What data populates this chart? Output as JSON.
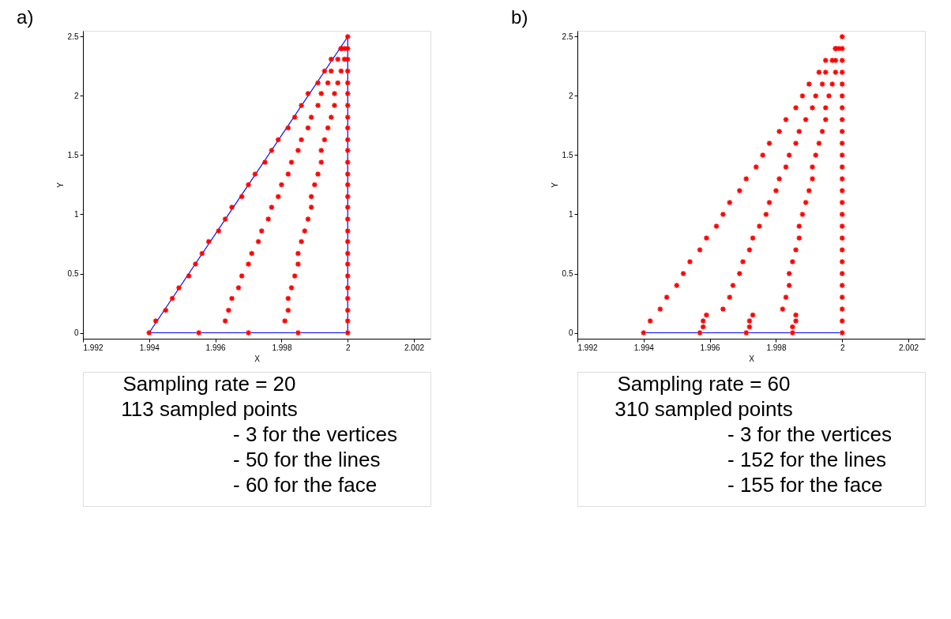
{
  "chart_data": [
    {
      "type": "scatter",
      "title": "a)",
      "xlabel": "X",
      "ylabel": "Y",
      "xlim": [
        1.992,
        2.0025
      ],
      "ylim": [
        -0.05,
        2.55
      ],
      "xticks": [
        1.992,
        1.994,
        1.996,
        1.998,
        2,
        2.002
      ],
      "yticks": [
        0,
        0.5,
        1,
        1.5,
        2,
        2.5
      ],
      "grid": false,
      "series": [
        {
          "type": "line",
          "marker": "none",
          "color": "#0000ff",
          "line_style": "solid",
          "x": [
            1.994,
            2,
            2
          ],
          "values": [
            0,
            0,
            2.5
          ]
        },
        {
          "type": "line",
          "marker": "none",
          "color": "#0000ff",
          "line_style": "solid",
          "x": [
            1.994,
            2
          ],
          "values": [
            0,
            2.5
          ]
        },
        {
          "marker": "cross",
          "color": "#ff0000",
          "x": [
            1.994,
            1.9942,
            1.9945,
            1.9947,
            1.9949,
            1.9952,
            1.9954,
            1.9956,
            1.9958,
            1.9961,
            1.9963,
            1.9965,
            1.9968,
            1.997,
            1.9972,
            1.9975,
            1.9977,
            1.9979,
            1.9982,
            1.9984,
            1.9986,
            1.9988,
            1.9991,
            1.9993,
            1.9995,
            1.9998,
            2.0,
            2,
            2,
            2,
            2,
            2,
            2,
            2,
            2,
            2,
            2,
            2,
            2,
            2,
            2,
            2,
            2,
            2,
            2,
            2,
            2,
            2,
            2,
            2,
            2,
            2,
            2,
            1.9955,
            1.997,
            1.9985,
            1.9963,
            1.9964,
            1.9965,
            1.9967,
            1.9968,
            1.997,
            1.9971,
            1.9973,
            1.9974,
            1.9976,
            1.9977,
            1.9979,
            1.998,
            1.9982,
            1.9983,
            1.9985,
            1.9986,
            1.9988,
            1.9989,
            1.9991,
            1.9992,
            1.9994,
            1.9995,
            1.9997,
            1.9998,
            1.9981,
            1.9982,
            1.9982,
            1.9983,
            1.9984,
            1.9985,
            1.9985,
            1.9986,
            1.9987,
            1.9988,
            1.9989,
            1.9989,
            1.999,
            1.9991,
            1.9992,
            1.9992,
            1.9993,
            1.9994,
            1.9995,
            1.9996,
            1.9996,
            1.9997,
            1.9998,
            1.9999,
            1.9999
          ],
          "values": [
            0,
            0.1,
            0.19,
            0.29,
            0.38,
            0.48,
            0.58,
            0.67,
            0.77,
            0.86,
            0.96,
            1.06,
            1.15,
            1.25,
            1.34,
            1.44,
            1.54,
            1.63,
            1.73,
            1.82,
            1.92,
            2.02,
            2.11,
            2.21,
            2.31,
            2.4,
            2.5,
            0,
            0.1,
            0.19,
            0.29,
            0.38,
            0.48,
            0.58,
            0.67,
            0.77,
            0.86,
            0.96,
            1.06,
            1.15,
            1.25,
            1.34,
            1.44,
            1.54,
            1.63,
            1.73,
            1.82,
            1.92,
            2.02,
            2.11,
            2.21,
            2.31,
            2.4,
            0,
            0,
            0,
            0.1,
            0.19,
            0.29,
            0.38,
            0.48,
            0.58,
            0.67,
            0.77,
            0.86,
            0.96,
            1.06,
            1.15,
            1.25,
            1.34,
            1.44,
            1.54,
            1.63,
            1.73,
            1.82,
            1.92,
            2.02,
            2.11,
            2.21,
            2.31,
            2.4,
            0.1,
            0.19,
            0.29,
            0.38,
            0.48,
            0.58,
            0.67,
            0.77,
            0.86,
            0.96,
            1.06,
            1.15,
            1.25,
            1.34,
            1.44,
            1.54,
            1.63,
            1.73,
            1.82,
            1.92,
            2.02,
            2.11,
            2.21,
            2.31,
            2.4
          ]
        }
      ],
      "annotations": [
        "Sampling rate = 20",
        "113 sampled points",
        "- 3 for the vertices",
        "- 50 for the lines",
        "- 60 for the face"
      ]
    },
    {
      "type": "scatter",
      "title": "b)",
      "xlabel": "X",
      "ylabel": "Y",
      "xlim": [
        1.992,
        2.0025
      ],
      "ylim": [
        -0.05,
        2.55
      ],
      "xticks": [
        1.992,
        1.994,
        1.996,
        1.998,
        2,
        2.002
      ],
      "yticks": [
        0,
        0.5,
        1,
        1.5,
        2,
        2.5
      ],
      "grid": false,
      "series": [
        {
          "type": "line",
          "marker": "none",
          "color": "#0000ff",
          "line_style": "solid",
          "x": [
            1.994,
            2
          ],
          "values": [
            0,
            0
          ]
        },
        {
          "marker": "cross",
          "color": "#ff0000",
          "x": [
            1.994,
            1.9942,
            1.9945,
            1.9947,
            1.995,
            1.9952,
            1.9954,
            1.9957,
            1.9959,
            1.9962,
            1.9964,
            1.9966,
            1.9969,
            1.9971,
            1.9974,
            1.9976,
            1.9978,
            1.9981,
            1.9983,
            1.9986,
            1.9988,
            1.999,
            1.9993,
            1.9995,
            1.9998,
            2.0,
            2,
            2,
            2,
            2,
            2,
            2,
            2,
            2,
            2,
            2,
            2,
            2,
            2,
            2,
            2,
            2,
            2,
            2,
            2,
            2,
            2,
            2,
            2,
            2,
            2,
            1.9964,
            1.9966,
            1.9967,
            1.9969,
            1.997,
            1.9972,
            1.9973,
            1.9975,
            1.9977,
            1.9978,
            1.998,
            1.9981,
            1.9983,
            1.9984,
            1.9986,
            1.9987,
            1.9989,
            1.9991,
            1.9992,
            1.9994,
            1.9995,
            1.9997,
            1.9998,
            1.9982,
            1.9983,
            1.9984,
            1.9984,
            1.9985,
            1.9986,
            1.9987,
            1.9987,
            1.9988,
            1.9989,
            1.999,
            1.9991,
            1.9991,
            1.9992,
            1.9993,
            1.9994,
            1.9995,
            1.9995,
            1.9996,
            1.9997,
            1.9998,
            1.9998,
            1.9999,
            1.9957,
            1.9958,
            1.9958,
            1.9959,
            1.9971,
            1.9972,
            1.9972,
            1.9973,
            1.9985,
            1.9985,
            1.9986,
            1.9986
          ],
          "values": [
            0,
            0.1,
            0.2,
            0.3,
            0.4,
            0.5,
            0.6,
            0.7,
            0.8,
            0.9,
            1.0,
            1.1,
            1.2,
            1.3,
            1.4,
            1.5,
            1.6,
            1.7,
            1.8,
            1.9,
            2.0,
            2.1,
            2.2,
            2.3,
            2.4,
            2.5,
            0,
            0.1,
            0.2,
            0.3,
            0.4,
            0.5,
            0.6,
            0.7,
            0.8,
            0.9,
            1.0,
            1.1,
            1.2,
            1.3,
            1.4,
            1.5,
            1.6,
            1.7,
            1.8,
            1.9,
            2.0,
            2.1,
            2.2,
            2.3,
            2.4,
            0.2,
            0.3,
            0.4,
            0.5,
            0.6,
            0.7,
            0.8,
            0.9,
            1.0,
            1.1,
            1.2,
            1.3,
            1.4,
            1.5,
            1.6,
            1.7,
            1.8,
            1.9,
            2.0,
            2.1,
            2.2,
            2.3,
            2.4,
            0.2,
            0.3,
            0.4,
            0.5,
            0.6,
            0.7,
            0.8,
            0.9,
            1.0,
            1.1,
            1.2,
            1.3,
            1.4,
            1.5,
            1.6,
            1.7,
            1.8,
            1.9,
            2.0,
            2.1,
            2.2,
            2.3,
            2.4,
            0,
            0.05,
            0.1,
            0.15,
            0,
            0.05,
            0.1,
            0.15,
            0,
            0.05,
            0.1,
            0.15
          ]
        }
      ],
      "annotations": [
        "Sampling rate = 60",
        "310 sampled points",
        "- 3 for the vertices",
        "- 152 for the lines",
        "- 155 for the face"
      ]
    }
  ]
}
